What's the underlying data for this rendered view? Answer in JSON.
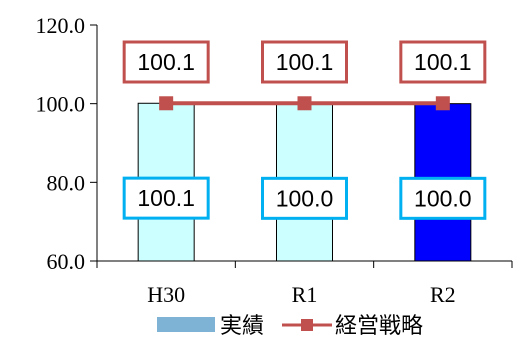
{
  "chart_data": {
    "type": "bar",
    "categories": [
      "H30",
      "R1",
      "R2"
    ],
    "ylim": [
      60,
      120
    ],
    "yticks": [
      "60.0",
      "80.0",
      "100.0",
      "120.0"
    ],
    "series": [
      {
        "name": "実績",
        "type": "bar",
        "values": [
          100.1,
          100.0,
          100.0
        ],
        "labels": [
          "100.1",
          "100.0",
          "100.0"
        ],
        "colors": [
          "#ccffff",
          "#ccffff",
          "#0000ff"
        ],
        "label_border_color": "#00b0f0"
      },
      {
        "name": "経営戦略",
        "type": "line",
        "values": [
          100.1,
          100.1,
          100.1
        ],
        "labels": [
          "100.1",
          "100.1",
          "100.1"
        ],
        "color": "#c0504d"
      }
    ],
    "legend": {
      "position": "bottom",
      "swatch_color": "#7fb3d5"
    },
    "grid": false
  }
}
